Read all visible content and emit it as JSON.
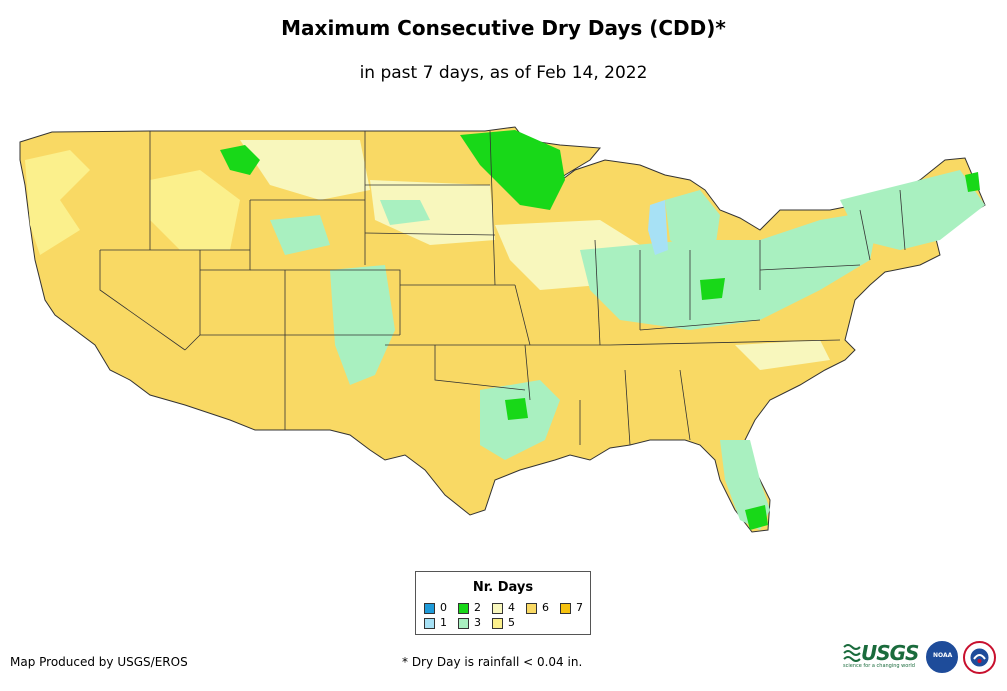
{
  "title": "Maximum Consecutive Dry Days (CDD)*",
  "subtitle": "in past 7 days, as of Feb 14, 2022",
  "legend": {
    "title": "Nr. Days",
    "items": [
      {
        "label": "0",
        "color": "#1f9bd9"
      },
      {
        "label": "1",
        "color": "#a7e1f5"
      },
      {
        "label": "2",
        "color": "#18d818"
      },
      {
        "label": "3",
        "color": "#a9f0c0"
      },
      {
        "label": "4",
        "color": "#f8f7bd"
      },
      {
        "label": "5",
        "color": "#fbf08c"
      },
      {
        "label": "6",
        "color": "#f9d964"
      },
      {
        "label": "7",
        "color": "#f6c20f"
      }
    ]
  },
  "footer": {
    "credit": "Map Produced by USGS/EROS",
    "note": "* Dry Day is rainfall < 0.04 in."
  },
  "logos": {
    "usgs": "USGS",
    "usgs_tagline": "science for a changing world",
    "noaa": "NOAA",
    "nws": "national-weather-service-emblem"
  },
  "colors": {
    "base": "#f9d964",
    "light": "#fbf08c",
    "pale": "#f8f7bd",
    "mint": "#a9f0c0",
    "green": "#18d818",
    "lake": "#a7e1f5",
    "border": "#333333"
  }
}
